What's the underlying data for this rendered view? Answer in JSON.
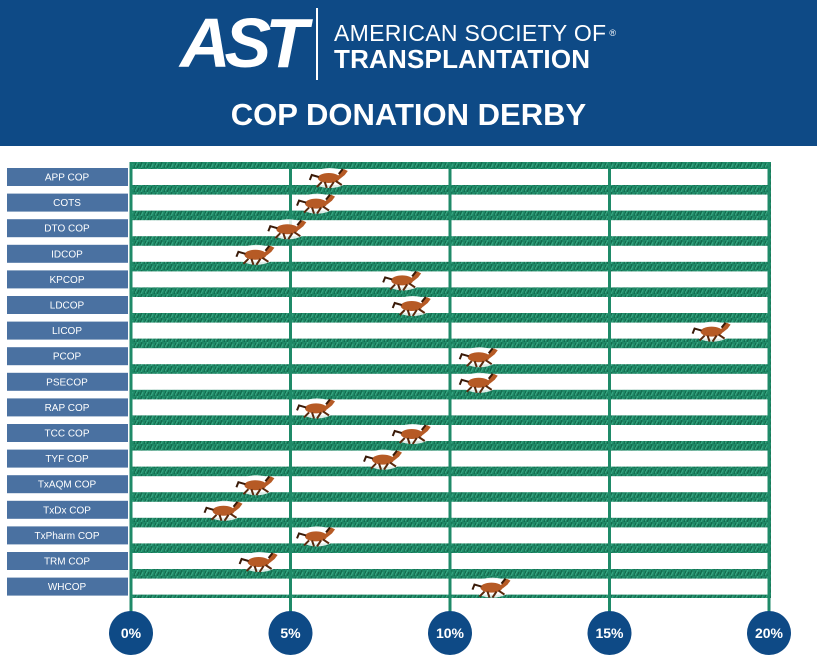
{
  "header": {
    "logo_mark": "AST",
    "org_line1": "AMERICAN SOCIETY OF",
    "org_line2": "TRANSPLANTATION",
    "registered_mark": "®"
  },
  "chart_data": {
    "type": "bar",
    "title": "COP DONATION DERBY",
    "xlabel": "",
    "ylabel": "",
    "categories": [
      "APP COP",
      "COTS",
      "DTO COP",
      "IDCOP",
      "KPCOP",
      "LDCOP",
      "LICOP",
      "PCOP",
      "PSECOP",
      "RAP COP",
      "TCC COP",
      "TYF COP",
      "TxAQM COP",
      "TxDx COP",
      "TxPharm COP",
      "TRM COP",
      "WHCOP"
    ],
    "values": [
      6.2,
      5.8,
      4.9,
      3.9,
      8.5,
      8.8,
      18.2,
      10.9,
      10.9,
      5.8,
      8.8,
      7.9,
      3.9,
      2.9,
      5.8,
      4.0,
      11.3
    ],
    "xlim": [
      0,
      20
    ],
    "xticks": [
      "0%",
      "5%",
      "10%",
      "15%",
      "20%"
    ],
    "xtick_values": [
      0,
      5,
      10,
      15,
      20
    ],
    "grid": true,
    "marker": "horse-icon",
    "colors": {
      "header_bg": "#0e4a86",
      "label_bg": "#4a71a1",
      "turf": "#1f8a68",
      "turf_dark": "#136448",
      "lane": "#ffffff",
      "tick_circle": "#0e4a86",
      "horse_body": "#b65a25"
    }
  }
}
